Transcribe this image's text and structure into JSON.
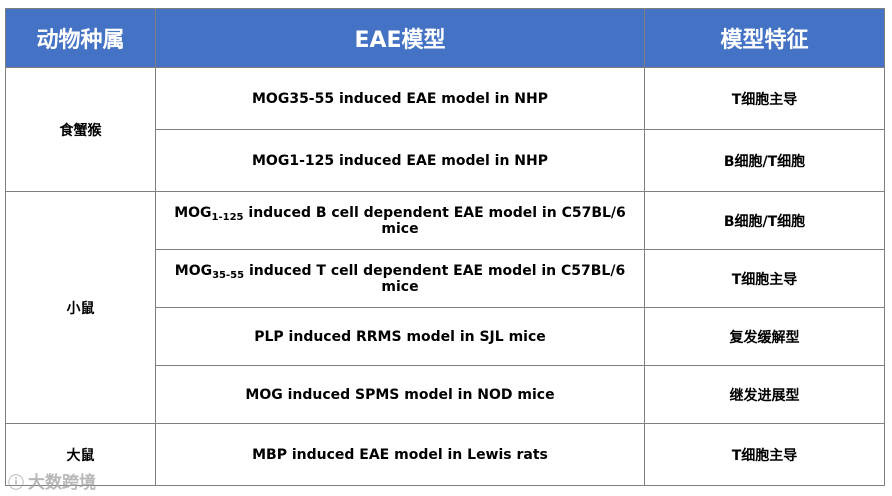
{
  "table": {
    "headers": [
      "动物种属",
      "EAE模型",
      "模型特征"
    ],
    "groups": [
      {
        "species": "食蟹猴",
        "rows": [
          {
            "model": "MOG35-55 induced EAE model in NHP",
            "feature": "T细胞主导"
          },
          {
            "model": "MOG1-125 induced EAE model in NHP",
            "feature": "B细胞/T细胞"
          }
        ]
      },
      {
        "species": "小鼠",
        "rows": [
          {
            "model_prefix": "MOG",
            "model_sub": "1-125",
            "model_suffix": " induced B cell dependent EAE model in C57BL/6 mice",
            "feature": "B细胞/T细胞"
          },
          {
            "model_prefix": "MOG",
            "model_sub": "35-55",
            "model_suffix": " induced T cell dependent EAE model in C57BL/6 mice",
            "feature": "T细胞主导"
          },
          {
            "model": "PLP induced RRMS model in SJL mice",
            "feature": "复发缓解型"
          },
          {
            "model": "MOG induced SPMS model in NOD mice",
            "feature": "继发进展型"
          }
        ]
      },
      {
        "species": "大鼠",
        "rows": [
          {
            "model": "MBP induced EAE model in Lewis rats",
            "feature": "T细胞主导"
          }
        ]
      }
    ]
  },
  "watermark": {
    "mark": "ⓘ",
    "text": "大数跨境"
  }
}
